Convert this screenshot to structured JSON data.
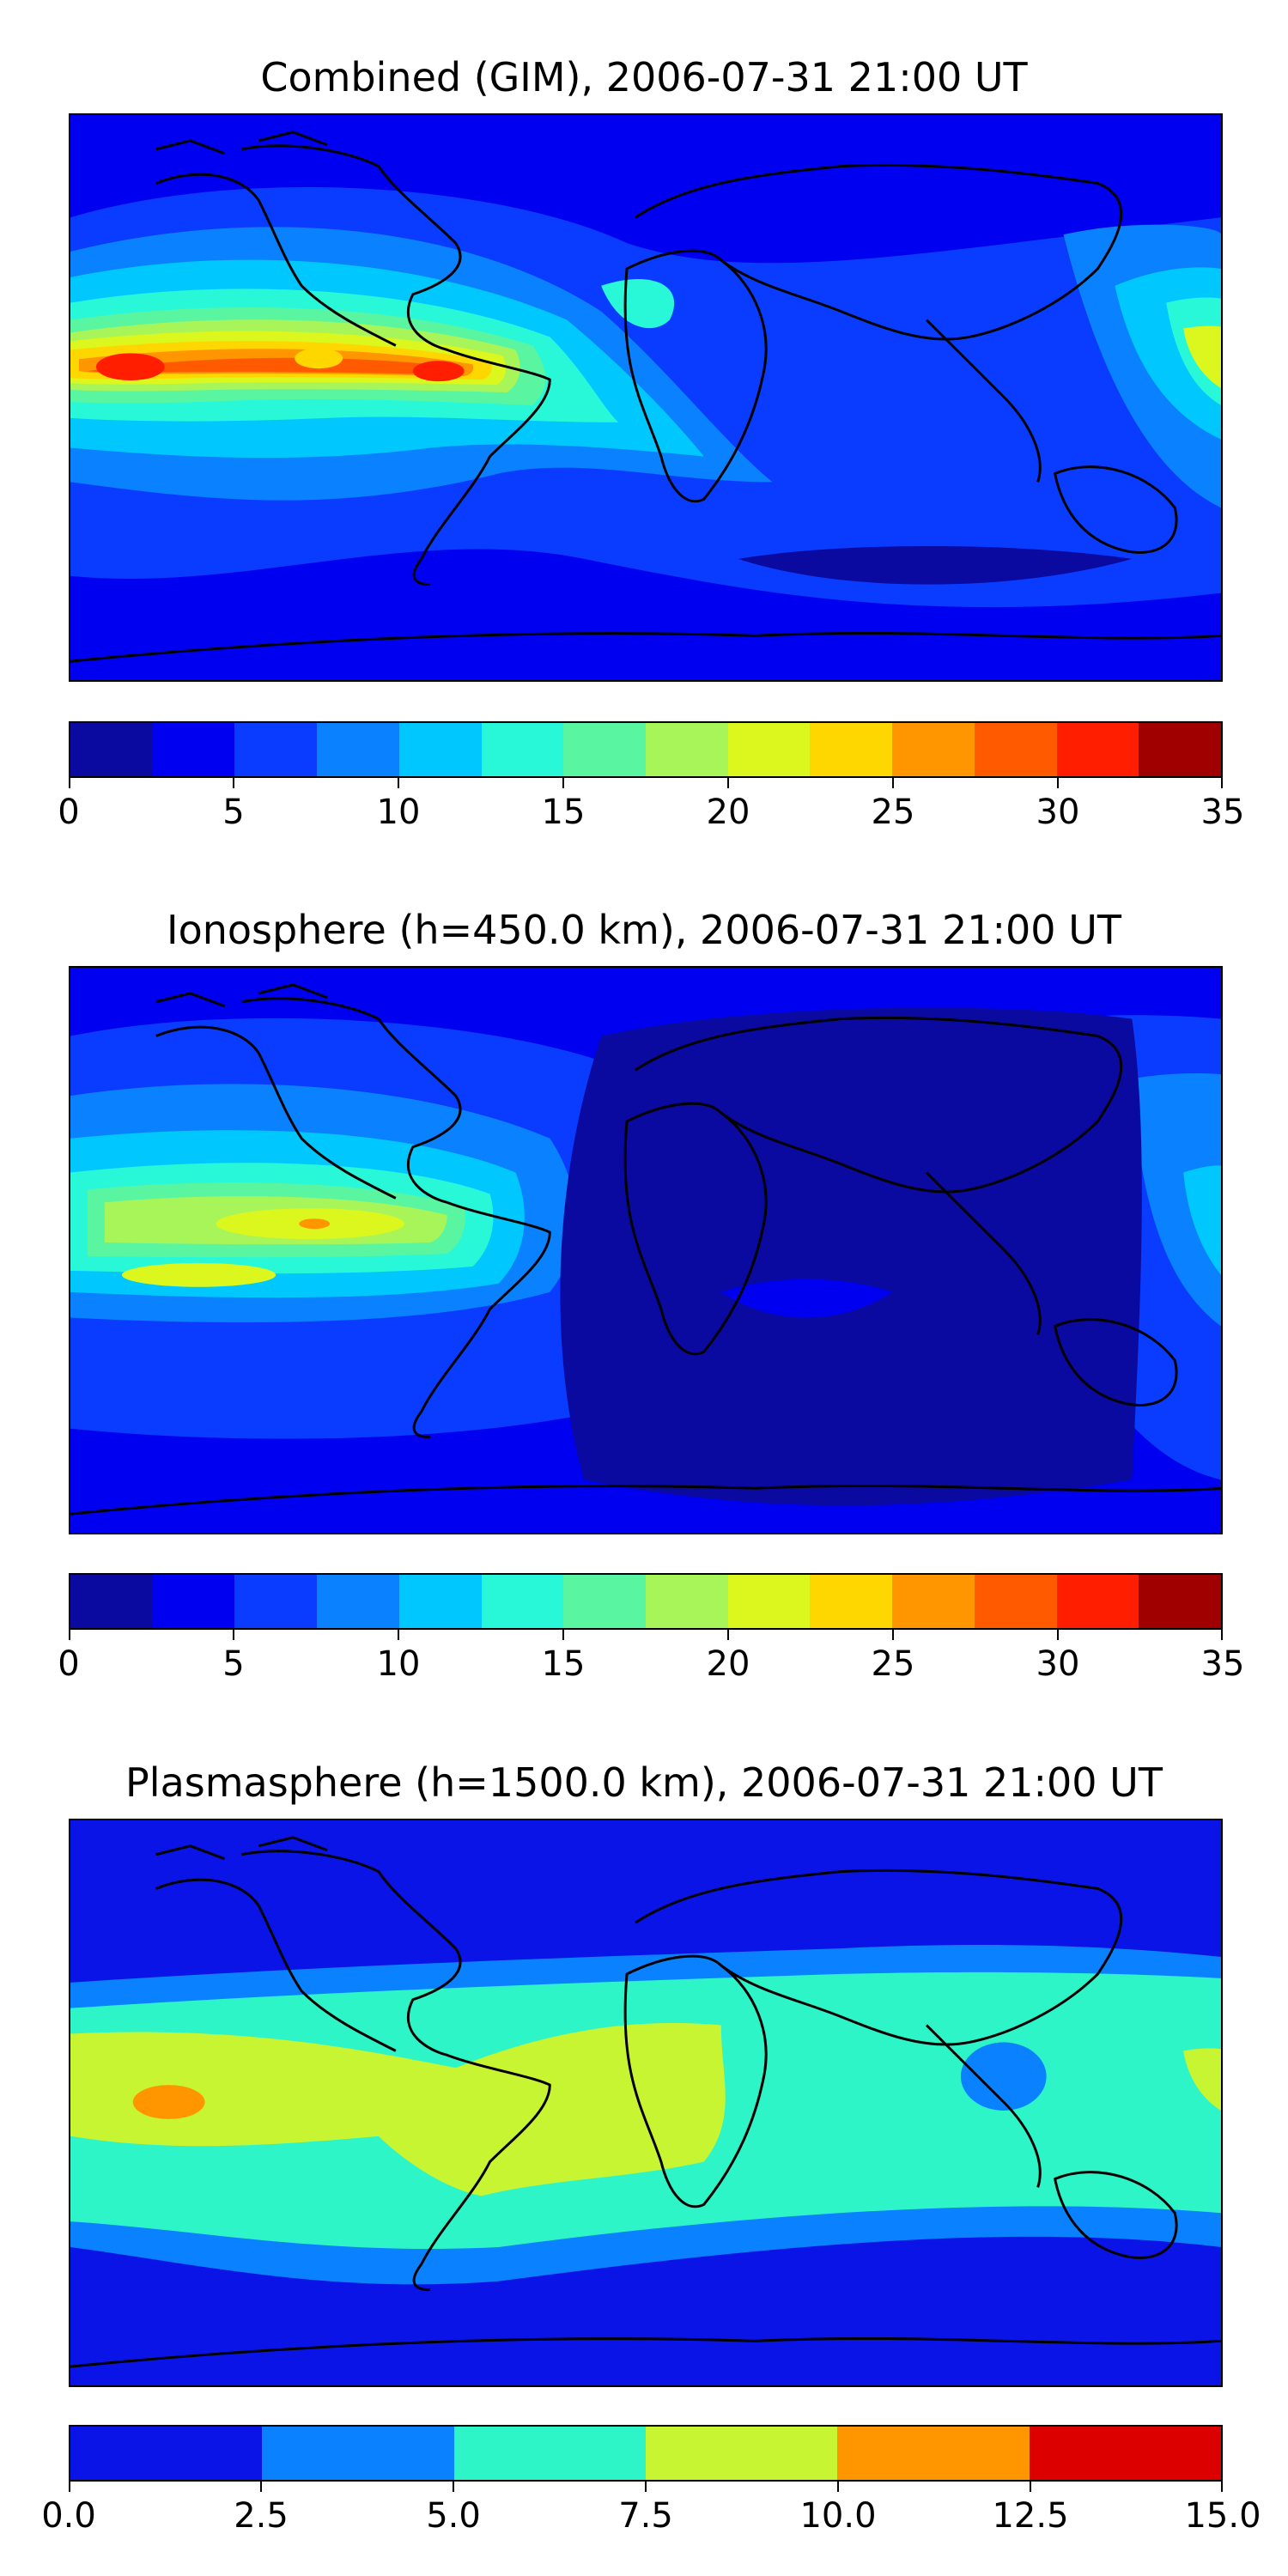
{
  "panels": [
    {
      "title": "Combined (GIM), 2006-07-31 21:00 UT",
      "levels": [
        0,
        2.5,
        5,
        7.5,
        10,
        12.5,
        15,
        17.5,
        20,
        22.5,
        25,
        27.5,
        30,
        32.5,
        35
      ],
      "colors": [
        "#0a0aa0",
        "#0000f0",
        "#0a3cff",
        "#0a82ff",
        "#00c8ff",
        "#29f8d8",
        "#5af5a0",
        "#a8f55a",
        "#dcf71e",
        "#ffd700",
        "#ff9600",
        "#ff5a00",
        "#ff1e00",
        "#a00000"
      ],
      "tick_labels": [
        "0",
        "5",
        "10",
        "15",
        "20",
        "25",
        "30",
        "35"
      ],
      "tick_values": [
        0,
        5,
        10,
        15,
        20,
        25,
        30,
        35
      ],
      "vmax": 35
    },
    {
      "title": "Ionosphere  (h=450.0 km), 2006-07-31 21:00 UT",
      "levels": [
        0,
        2.5,
        5,
        7.5,
        10,
        12.5,
        15,
        17.5,
        20,
        22.5,
        25,
        27.5,
        30,
        32.5,
        35
      ],
      "colors": [
        "#0a0aa0",
        "#0000f0",
        "#0a3cff",
        "#0a82ff",
        "#00c8ff",
        "#29f8d8",
        "#5af5a0",
        "#a8f55a",
        "#dcf71e",
        "#ffd700",
        "#ff9600",
        "#ff5a00",
        "#ff1e00",
        "#a00000"
      ],
      "tick_labels": [
        "0",
        "5",
        "10",
        "15",
        "20",
        "25",
        "30",
        "35"
      ],
      "tick_values": [
        0,
        5,
        10,
        15,
        20,
        25,
        30,
        35
      ],
      "vmax": 35
    },
    {
      "title": "Plasmasphere (h=1500.0 km), 2006-07-31 21:00 UT",
      "levels": [
        0,
        2.5,
        5,
        7.5,
        10,
        12.5,
        15
      ],
      "colors": [
        "#0a14e6",
        "#0a82ff",
        "#2ef5c8",
        "#c8f532",
        "#ff9600",
        "#dc0000"
      ],
      "tick_labels": [
        "0.0",
        "2.5",
        "5.0",
        "7.5",
        "10.0",
        "12.5",
        "15.0"
      ],
      "tick_values": [
        0,
        2.5,
        5,
        7.5,
        10,
        12.5,
        15
      ],
      "vmax": 15
    }
  ]
}
